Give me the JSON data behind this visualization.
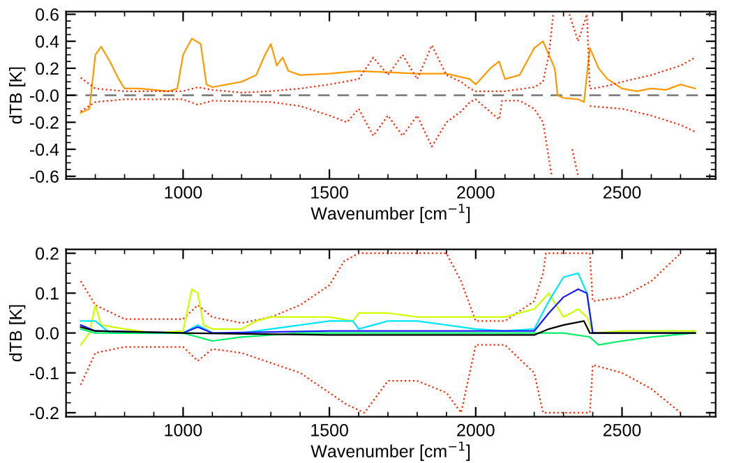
{
  "chart_data": [
    {
      "type": "line",
      "xlabel": "Wavenumber [cm$^{−1}$]",
      "ylabel": "dTB [K]",
      "xlim": [
        600,
        2820
      ],
      "xticks": [
        1000,
        1500,
        2000,
        2500
      ],
      "ylim": [
        -0.62,
        0.62
      ],
      "yticks": [
        {
          "value": 0.6,
          "label": "0.6"
        },
        {
          "value": 0.4,
          "label": "0.4"
        },
        {
          "value": 0.2,
          "label": "0.2"
        },
        {
          "value": 0,
          "label": "-0.0"
        },
        {
          "value": -0.2,
          "label": "-0.2"
        },
        {
          "value": -0.4,
          "label": "-0.4"
        },
        {
          "value": -0.6,
          "label": "-0.6"
        }
      ],
      "ref_lines": [
        {
          "axis": "y",
          "value": 0,
          "color": "#808080",
          "line_style": "dashed"
        }
      ],
      "series": [
        {
          "color": "#ff9900",
          "line_style": "solid",
          "x": [
            650,
            680,
            700,
            720,
            750,
            780,
            800,
            850,
            900,
            950,
            980,
            1000,
            1030,
            1060,
            1080,
            1100,
            1150,
            1200,
            1250,
            1280,
            1300,
            1320,
            1340,
            1360,
            1400,
            1500,
            1600,
            1700,
            1800,
            1900,
            1980,
            2000,
            2050,
            2080,
            2100,
            2150,
            2200,
            2230,
            2250,
            2270,
            2280,
            2300,
            2350,
            2370,
            2390,
            2420,
            2450,
            2500,
            2550,
            2600,
            2650,
            2700,
            2750
          ],
          "values": [
            -0.13,
            -0.1,
            0.3,
            0.36,
            0.25,
            0.12,
            0.05,
            0.05,
            0.04,
            0.03,
            0.05,
            0.3,
            0.42,
            0.38,
            0.08,
            0.06,
            0.08,
            0.1,
            0.15,
            0.3,
            0.38,
            0.22,
            0.28,
            0.18,
            0.15,
            0.16,
            0.18,
            0.17,
            0.16,
            0.16,
            0.12,
            0.08,
            0.2,
            0.25,
            0.12,
            0.15,
            0.35,
            0.4,
            0.3,
            0.2,
            0.0,
            -0.02,
            -0.03,
            -0.05,
            0.35,
            0.2,
            0.12,
            0.05,
            0.03,
            0.05,
            0.04,
            0.08,
            0.05
          ]
        },
        {
          "color": "#ff2200",
          "line_style": "dotted",
          "x": [
            650,
            700,
            800,
            900,
            1000,
            1050,
            1100,
            1200,
            1300,
            1400,
            1500,
            1600,
            1650,
            1700,
            1750,
            1800,
            1850,
            1900,
            1950,
            1980,
            2000,
            2100,
            2200,
            2230,
            2250,
            2265,
            2280,
            2320,
            2350,
            2380,
            2390,
            2400,
            2450,
            2500,
            2600,
            2700,
            2750
          ],
          "values": [
            0.13,
            0.05,
            0.03,
            0.03,
            0.03,
            0.06,
            0.04,
            0.02,
            0.03,
            0.05,
            0.08,
            0.12,
            0.28,
            0.15,
            0.3,
            0.12,
            0.37,
            0.15,
            0.1,
            0.05,
            0.03,
            0.03,
            0.06,
            0.1,
            0.3,
            0.6,
            null,
            0.6,
            0.4,
            0.6,
            0.05,
            0.05,
            0.07,
            0.1,
            0.15,
            0.22,
            0.28
          ]
        },
        {
          "color": "#ff2200",
          "line_style": "dotted",
          "x": [
            650,
            700,
            800,
            1000,
            1050,
            1100,
            1300,
            1400,
            1500,
            1560,
            1600,
            1650,
            1700,
            1750,
            1800,
            1850,
            1900,
            1950,
            1980,
            2000,
            2080,
            2090,
            2150,
            2200,
            2230,
            2260,
            2300,
            2330,
            2350,
            2380,
            2390,
            2500,
            2600,
            2700,
            2750
          ],
          "values": [
            -0.12,
            -0.05,
            -0.03,
            -0.03,
            -0.07,
            -0.04,
            -0.05,
            -0.08,
            -0.15,
            -0.2,
            -0.1,
            -0.3,
            -0.15,
            -0.3,
            -0.15,
            -0.38,
            -0.2,
            -0.12,
            -0.05,
            -0.03,
            -0.18,
            -0.04,
            -0.04,
            -0.1,
            -0.2,
            -0.6,
            null,
            -0.4,
            -0.6,
            null,
            -0.08,
            -0.1,
            -0.15,
            -0.22,
            -0.27
          ]
        }
      ]
    },
    {
      "type": "line",
      "xlabel": "Wavenumber [cm$^{−1}$]",
      "ylabel": "dTB [K]",
      "xlim": [
        600,
        2820
      ],
      "xticks": [
        1000,
        1500,
        2000,
        2500
      ],
      "ylim": [
        -0.21,
        0.21
      ],
      "yticks": [
        {
          "value": 0.2,
          "label": "0.2"
        },
        {
          "value": 0.1,
          "label": "0.1"
        },
        {
          "value": 0,
          "label": "0.0"
        },
        {
          "value": -0.1,
          "label": "-0.1"
        },
        {
          "value": -0.2,
          "label": "-0.2"
        }
      ],
      "series": [
        {
          "color": "#ff2200",
          "line_style": "dotted",
          "x": [
            650,
            700,
            800,
            1000,
            1050,
            1100,
            1200,
            1300,
            1400,
            1500,
            1550,
            1600,
            1700,
            1800,
            1900,
            1950,
            2000,
            2100,
            2200,
            2230,
            2240,
            2390,
            2400,
            2500,
            2600,
            2700
          ],
          "values": [
            0.13,
            0.07,
            0.035,
            0.035,
            0.07,
            0.04,
            0.025,
            0.04,
            0.07,
            0.12,
            0.18,
            0.2,
            0.2,
            0.2,
            0.2,
            0.13,
            0.03,
            0.03,
            0.08,
            0.15,
            0.2,
            0.2,
            0.08,
            0.09,
            0.13,
            0.2
          ]
        },
        {
          "color": "#ff2200",
          "line_style": "dotted",
          "x": [
            650,
            700,
            800,
            1000,
            1050,
            1100,
            1200,
            1400,
            1500,
            1560,
            1620,
            1700,
            1800,
            1900,
            1950,
            2000,
            2100,
            2200,
            2230,
            2390,
            2400,
            2500,
            2600,
            2700
          ],
          "values": [
            -0.13,
            -0.05,
            -0.035,
            -0.035,
            -0.07,
            -0.04,
            -0.05,
            -0.1,
            -0.15,
            -0.18,
            -0.2,
            -0.12,
            -0.12,
            -0.15,
            -0.2,
            -0.03,
            -0.03,
            -0.1,
            -0.2,
            -0.2,
            -0.08,
            -0.1,
            -0.14,
            -0.2
          ]
        },
        {
          "color": "#ccff00",
          "line_style": "solid",
          "x": [
            650,
            680,
            700,
            720,
            800,
            900,
            1000,
            1030,
            1050,
            1070,
            1100,
            1200,
            1250,
            1300,
            1400,
            1500,
            1580,
            1600,
            1700,
            1800,
            1900,
            2000,
            2100,
            2200,
            2250,
            2300,
            2350,
            2380,
            2400,
            2500,
            2600,
            2700,
            2750
          ],
          "values": [
            -0.03,
            0.0,
            0.07,
            0.02,
            0.01,
            0.0,
            0.005,
            0.11,
            0.1,
            0.02,
            0.01,
            0.01,
            0.03,
            0.04,
            0.04,
            0.04,
            0.03,
            0.05,
            0.05,
            0.04,
            0.04,
            0.04,
            0.04,
            0.06,
            0.1,
            0.04,
            0.06,
            0.04,
            0.0,
            0.005,
            0.005,
            0.005,
            0.005
          ]
        },
        {
          "color": "#00e5ff",
          "line_style": "solid",
          "x": [
            650,
            700,
            750,
            1000,
            1050,
            1100,
            1200,
            1300,
            1400,
            1500,
            1580,
            1600,
            1700,
            1800,
            1900,
            2000,
            2100,
            2200,
            2250,
            2300,
            2350,
            2380,
            2400
          ],
          "values": [
            0.03,
            0.03,
            0.0,
            0.0,
            0.02,
            0.0,
            0.0,
            0.01,
            0.02,
            0.03,
            0.03,
            0.01,
            0.03,
            0.03,
            0.02,
            0.01,
            0.005,
            0.01,
            0.08,
            0.14,
            0.15,
            0.1,
            0.0
          ]
        },
        {
          "color": "#1a1aff",
          "line_style": "solid",
          "x": [
            650,
            700,
            1000,
            1050,
            1100,
            1500,
            2000,
            2200,
            2250,
            2300,
            2350,
            2380,
            2400,
            2750
          ],
          "values": [
            0.02,
            0.005,
            0.0,
            0.015,
            0.0,
            0.005,
            0.005,
            0.005,
            0.05,
            0.09,
            0.11,
            0.1,
            0.0,
            0.0
          ]
        },
        {
          "color": "#00ee66",
          "line_style": "solid",
          "x": [
            650,
            700,
            1000,
            1050,
            1100,
            1200,
            1300,
            1400,
            2000,
            2300,
            2390,
            2420,
            2500,
            2600,
            2750
          ],
          "values": [
            0.01,
            0.0,
            0.0,
            -0.01,
            -0.02,
            -0.01,
            -0.005,
            0.0,
            0.0,
            0.0,
            -0.01,
            -0.03,
            -0.02,
            -0.01,
            0.0
          ]
        },
        {
          "color": "#000000",
          "line_style": "solid",
          "x": [
            650,
            700,
            1000,
            1500,
            2000,
            2200,
            2250,
            2300,
            2370,
            2390,
            2750
          ],
          "values": [
            0.015,
            0.005,
            0.0,
            -0.005,
            -0.005,
            -0.005,
            0.01,
            0.02,
            0.03,
            0.0,
            0.0
          ]
        }
      ]
    }
  ]
}
